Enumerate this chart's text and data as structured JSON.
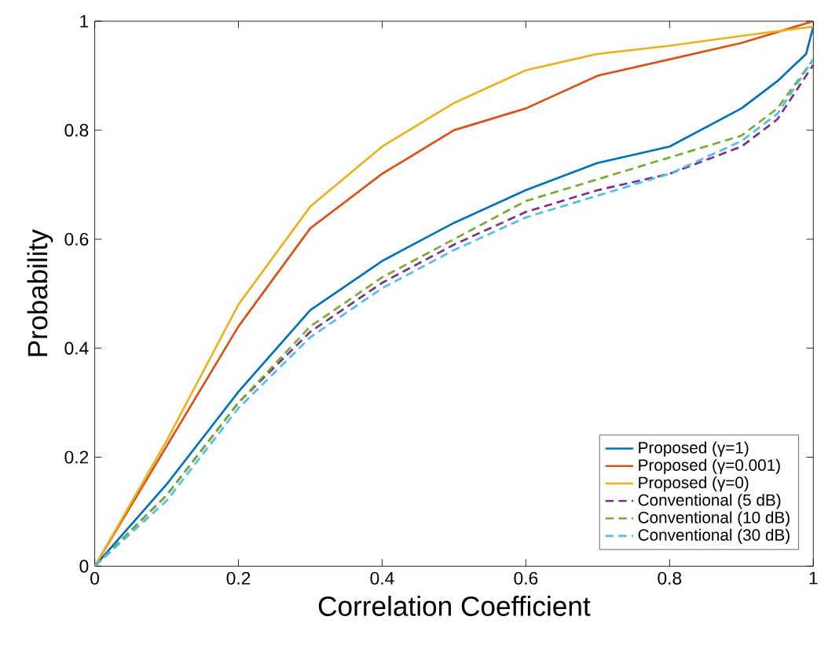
{
  "chart_data": {
    "type": "line",
    "xlabel": "Correlation Coefficient",
    "ylabel": "Probability",
    "xlim": [
      0,
      1
    ],
    "ylim": [
      0,
      1
    ],
    "xticks": [
      0,
      0.2,
      0.4,
      0.6,
      0.8,
      1
    ],
    "yticks": [
      0,
      0.2,
      0.4,
      0.6,
      0.8,
      1
    ],
    "grid": false,
    "legend": "bottom right",
    "marker": "none",
    "series": [
      {
        "name": "Proposed (γ=1)",
        "color": "#0072bd",
        "line_style": "solid",
        "x": [
          0,
          0.1,
          0.2,
          0.3,
          0.4,
          0.5,
          0.6,
          0.7,
          0.8,
          0.9,
          0.95,
          0.99,
          1
        ],
        "values": [
          0,
          0.15,
          0.32,
          0.47,
          0.56,
          0.63,
          0.69,
          0.74,
          0.77,
          0.84,
          0.89,
          0.94,
          0.99
        ]
      },
      {
        "name": "Proposed (γ=0.001)",
        "color": "#d95319",
        "line_style": "solid",
        "x": [
          0,
          0.1,
          0.2,
          0.3,
          0.4,
          0.5,
          0.6,
          0.7,
          0.8,
          0.9,
          1
        ],
        "values": [
          0,
          0.22,
          0.44,
          0.62,
          0.72,
          0.8,
          0.84,
          0.9,
          0.93,
          0.96,
          1
        ]
      },
      {
        "name": "Proposed (γ=0)",
        "color": "#edb120",
        "line_style": "solid",
        "x": [
          0,
          0.1,
          0.2,
          0.3,
          0.4,
          0.5,
          0.6,
          0.7,
          0.8,
          0.9,
          1
        ],
        "values": [
          0,
          0.23,
          0.48,
          0.66,
          0.77,
          0.85,
          0.91,
          0.94,
          0.955,
          0.973,
          0.99
        ]
      },
      {
        "name": "Conventional (5 dB)",
        "color": "#7e2f8e",
        "line_style": "dashed",
        "x": [
          0,
          0.1,
          0.2,
          0.3,
          0.4,
          0.5,
          0.6,
          0.7,
          0.8,
          0.9,
          0.95,
          1
        ],
        "values": [
          0,
          0.13,
          0.3,
          0.43,
          0.52,
          0.59,
          0.65,
          0.69,
          0.72,
          0.77,
          0.82,
          0.92
        ]
      },
      {
        "name": "Conventional (10 dB)",
        "color": "#77ac30",
        "line_style": "dashed",
        "x": [
          0,
          0.1,
          0.2,
          0.3,
          0.4,
          0.5,
          0.6,
          0.7,
          0.8,
          0.9,
          0.95,
          1
        ],
        "values": [
          0,
          0.13,
          0.3,
          0.44,
          0.53,
          0.6,
          0.67,
          0.71,
          0.75,
          0.79,
          0.84,
          0.93
        ]
      },
      {
        "name": "Conventional (30 dB)",
        "color": "#4dbeee",
        "line_style": "dashed",
        "x": [
          0,
          0.1,
          0.2,
          0.3,
          0.4,
          0.5,
          0.6,
          0.7,
          0.8,
          0.9,
          0.95,
          1
        ],
        "values": [
          0,
          0.12,
          0.29,
          0.42,
          0.51,
          0.58,
          0.64,
          0.68,
          0.72,
          0.78,
          0.83,
          0.93
        ]
      }
    ]
  }
}
